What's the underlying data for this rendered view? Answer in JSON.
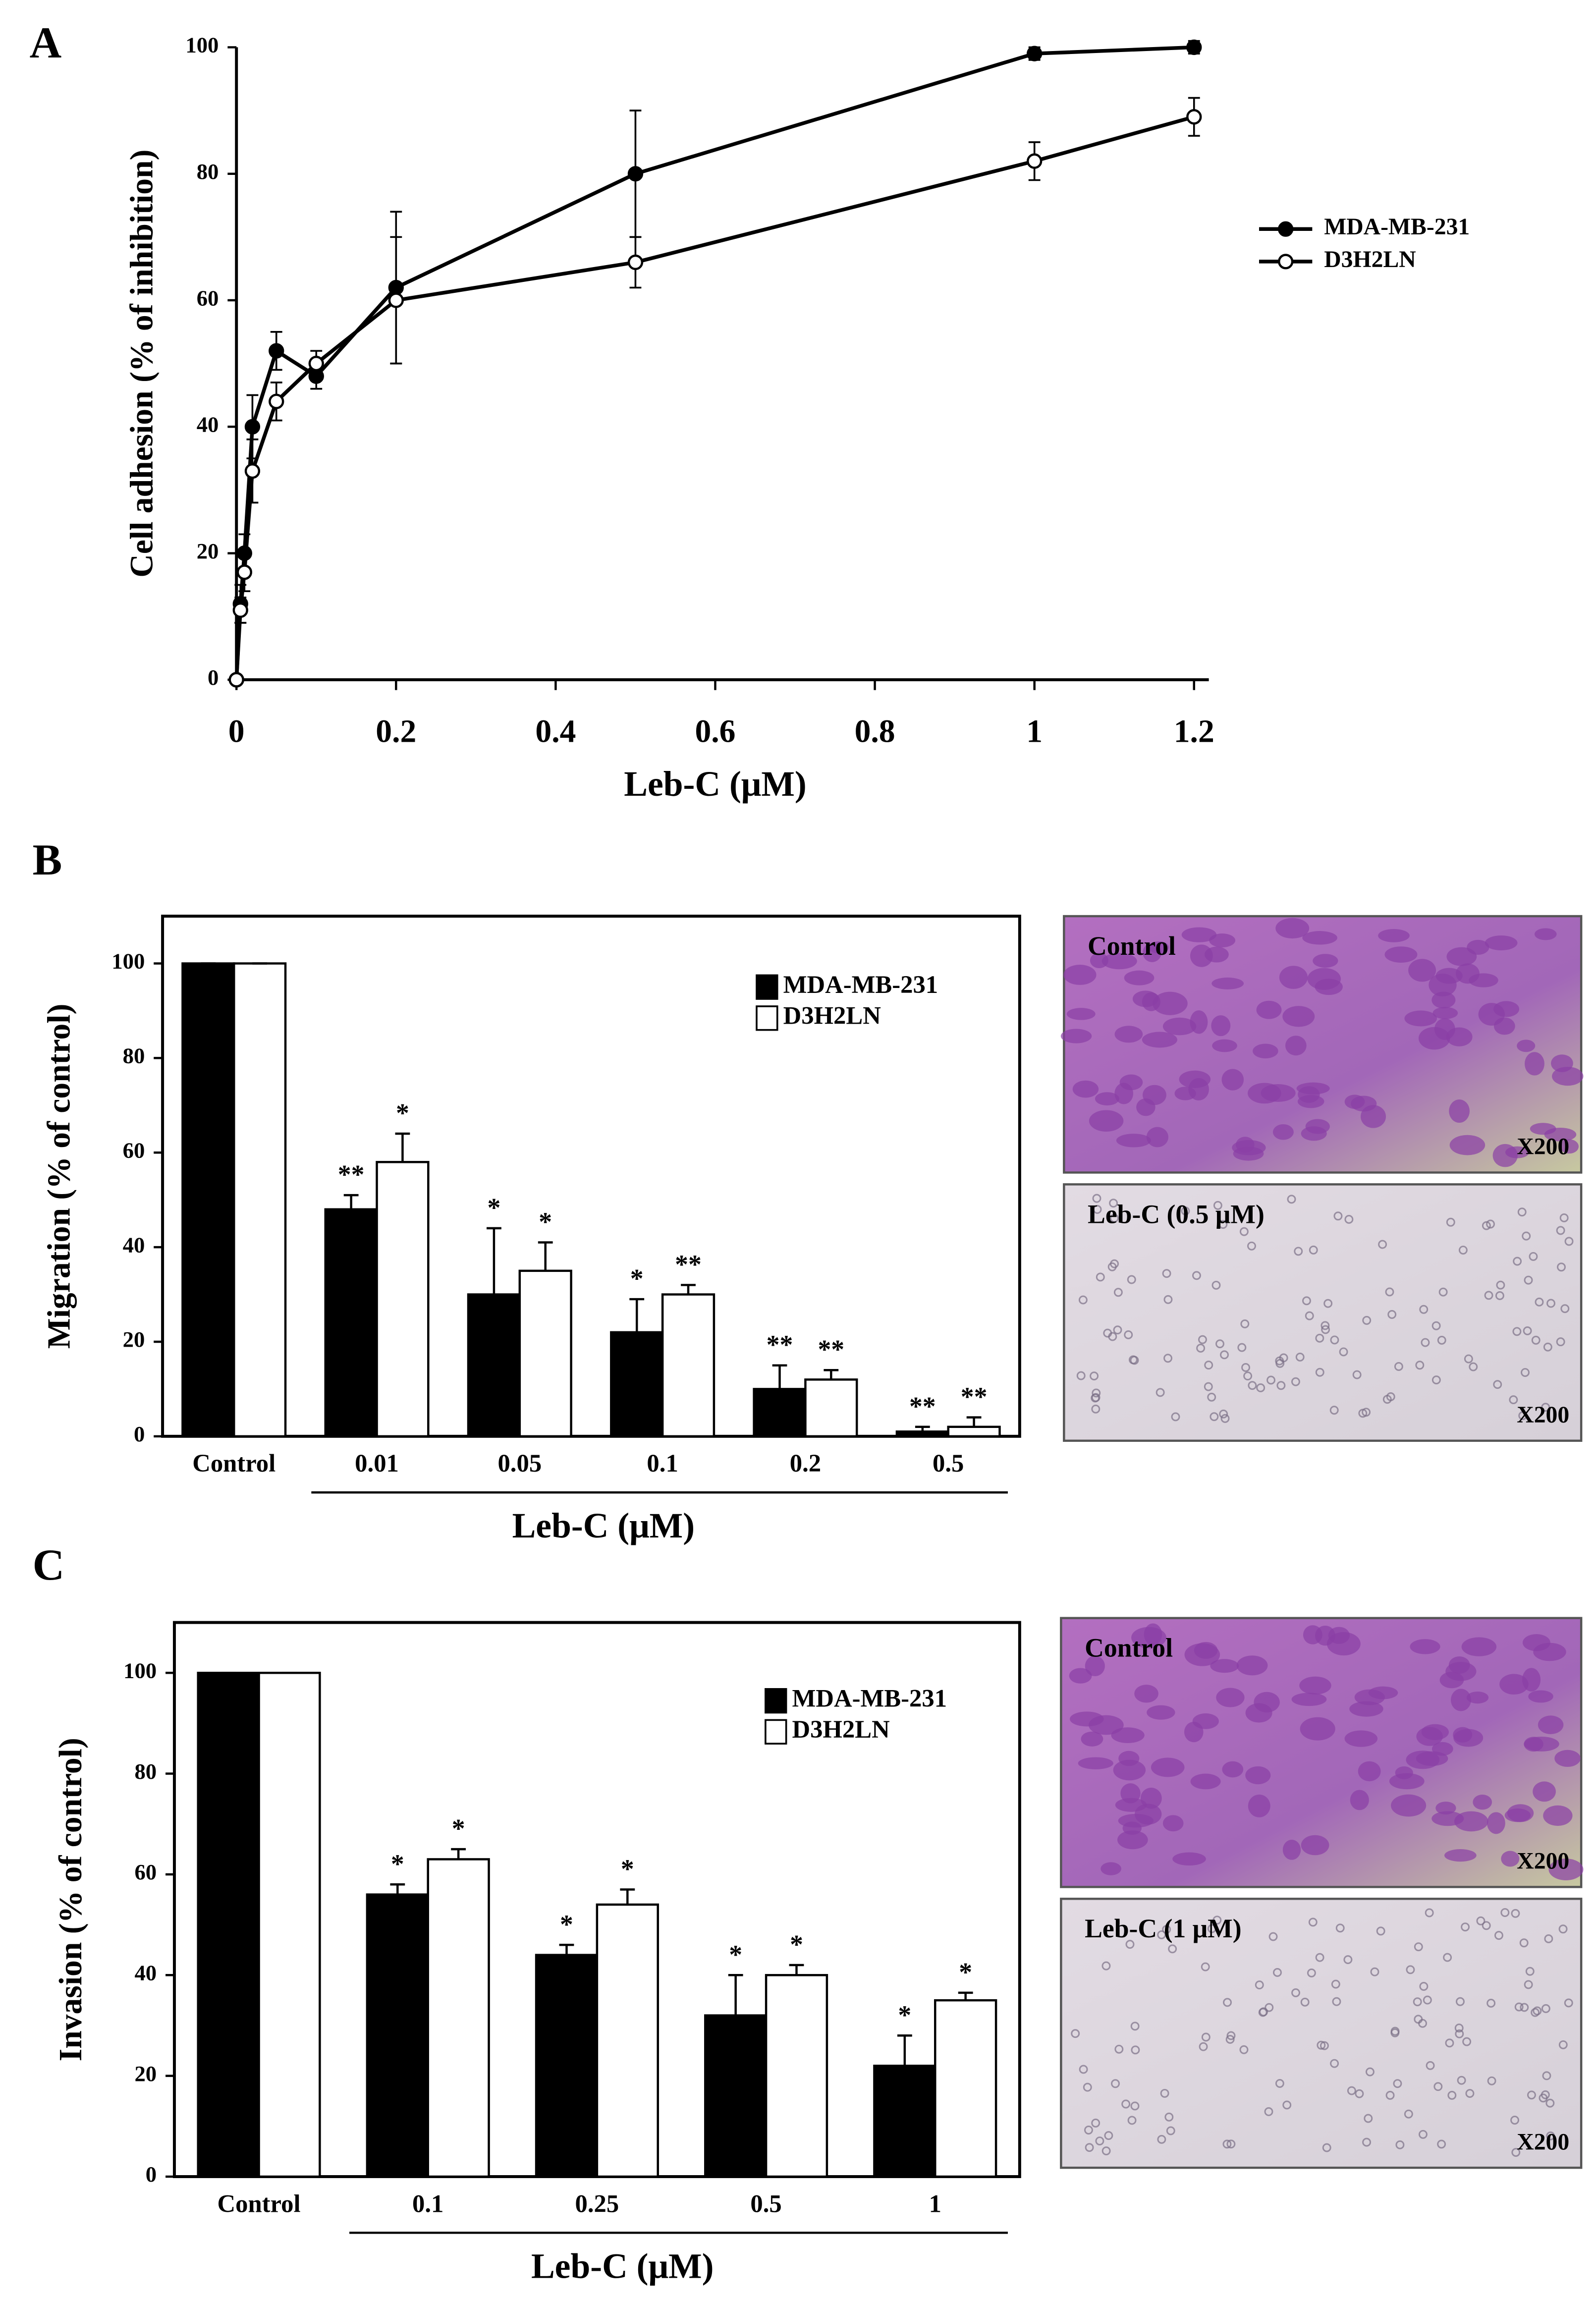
{
  "chart_data": [
    {
      "type": "line",
      "panel": "A",
      "xlabel": "Leb-C (μM)",
      "ylabel": "Cell adhesion (% of inhibition)",
      "x": [
        0,
        0.005,
        0.01,
        0.02,
        0.05,
        0.1,
        0.2,
        0.5,
        1,
        1.2
      ],
      "series": [
        {
          "name": "MDA-MB-231",
          "color": "#000000",
          "values": [
            0,
            12,
            20,
            40,
            52,
            48,
            62,
            80,
            99,
            100
          ],
          "errors": [
            0,
            3,
            3,
            5,
            3,
            2,
            12,
            10,
            1,
            1
          ]
        },
        {
          "name": "D3H2LN",
          "color": "#ffffff",
          "values": [
            0,
            11,
            17,
            33,
            44,
            50,
            60,
            66,
            82,
            89
          ],
          "errors": [
            0,
            2,
            3,
            5,
            3,
            2,
            10,
            4,
            3,
            3
          ]
        }
      ],
      "xlim": [
        0,
        1.2
      ],
      "xticks": [
        0,
        0.2,
        0.4,
        0.6,
        0.8,
        1,
        1.2
      ],
      "ylim": [
        0,
        100
      ],
      "yticks": [
        0,
        20,
        40,
        60,
        80,
        100
      ],
      "legend": "right"
    },
    {
      "type": "bar",
      "panel": "B",
      "xlabel": "Leb-C (μM)",
      "ylabel": "Migration (% of control)",
      "categories": [
        "Control",
        "0.01",
        "0.05",
        "0.1",
        "0.2",
        "0.5"
      ],
      "series": [
        {
          "name": "MDA-MB-231",
          "color": "#000000",
          "values": [
            100,
            48,
            30,
            22,
            10,
            1
          ],
          "errors": [
            0,
            3,
            14,
            7,
            5,
            1
          ],
          "annotations": [
            null,
            "**",
            "*",
            "*",
            "**",
            "**"
          ]
        },
        {
          "name": "D3H2LN",
          "color": "#ffffff",
          "values": [
            100,
            58,
            35,
            30,
            12,
            2
          ],
          "errors": [
            0,
            6,
            6,
            2,
            2,
            2
          ],
          "annotations": [
            null,
            "*",
            "*",
            "**",
            "**",
            "**"
          ]
        }
      ],
      "ylim": [
        0,
        110
      ],
      "yticks": [
        0,
        20,
        40,
        60,
        80,
        100
      ],
      "legend": "upper right",
      "images": [
        {
          "label": "Control",
          "magnification": "X200"
        },
        {
          "label": "Leb-C (0.5 μM)",
          "magnification": "X200"
        }
      ]
    },
    {
      "type": "bar",
      "panel": "C",
      "xlabel": "Leb-C (μM)",
      "ylabel": "Invasion (% of control)",
      "categories": [
        "Control",
        "0.1",
        "0.25",
        "0.5",
        "1"
      ],
      "series": [
        {
          "name": "MDA-MB-231",
          "color": "#000000",
          "values": [
            100,
            56,
            44,
            32,
            22
          ],
          "errors": [
            0,
            2,
            2,
            8,
            6
          ],
          "annotations": [
            null,
            "*",
            "*",
            "*",
            "*"
          ]
        },
        {
          "name": "D3H2LN",
          "color": "#ffffff",
          "values": [
            100,
            63,
            54,
            40,
            35
          ],
          "errors": [
            0,
            2,
            3,
            2,
            1.5
          ],
          "annotations": [
            null,
            "*",
            "*",
            "*",
            "*"
          ]
        }
      ],
      "ylim": [
        0,
        110
      ],
      "yticks": [
        0,
        20,
        40,
        60,
        80,
        100
      ],
      "legend": "upper right",
      "images": [
        {
          "label": "Control",
          "magnification": "X200"
        },
        {
          "label": "Leb-C (1 μM)",
          "magnification": "X200"
        }
      ]
    }
  ]
}
